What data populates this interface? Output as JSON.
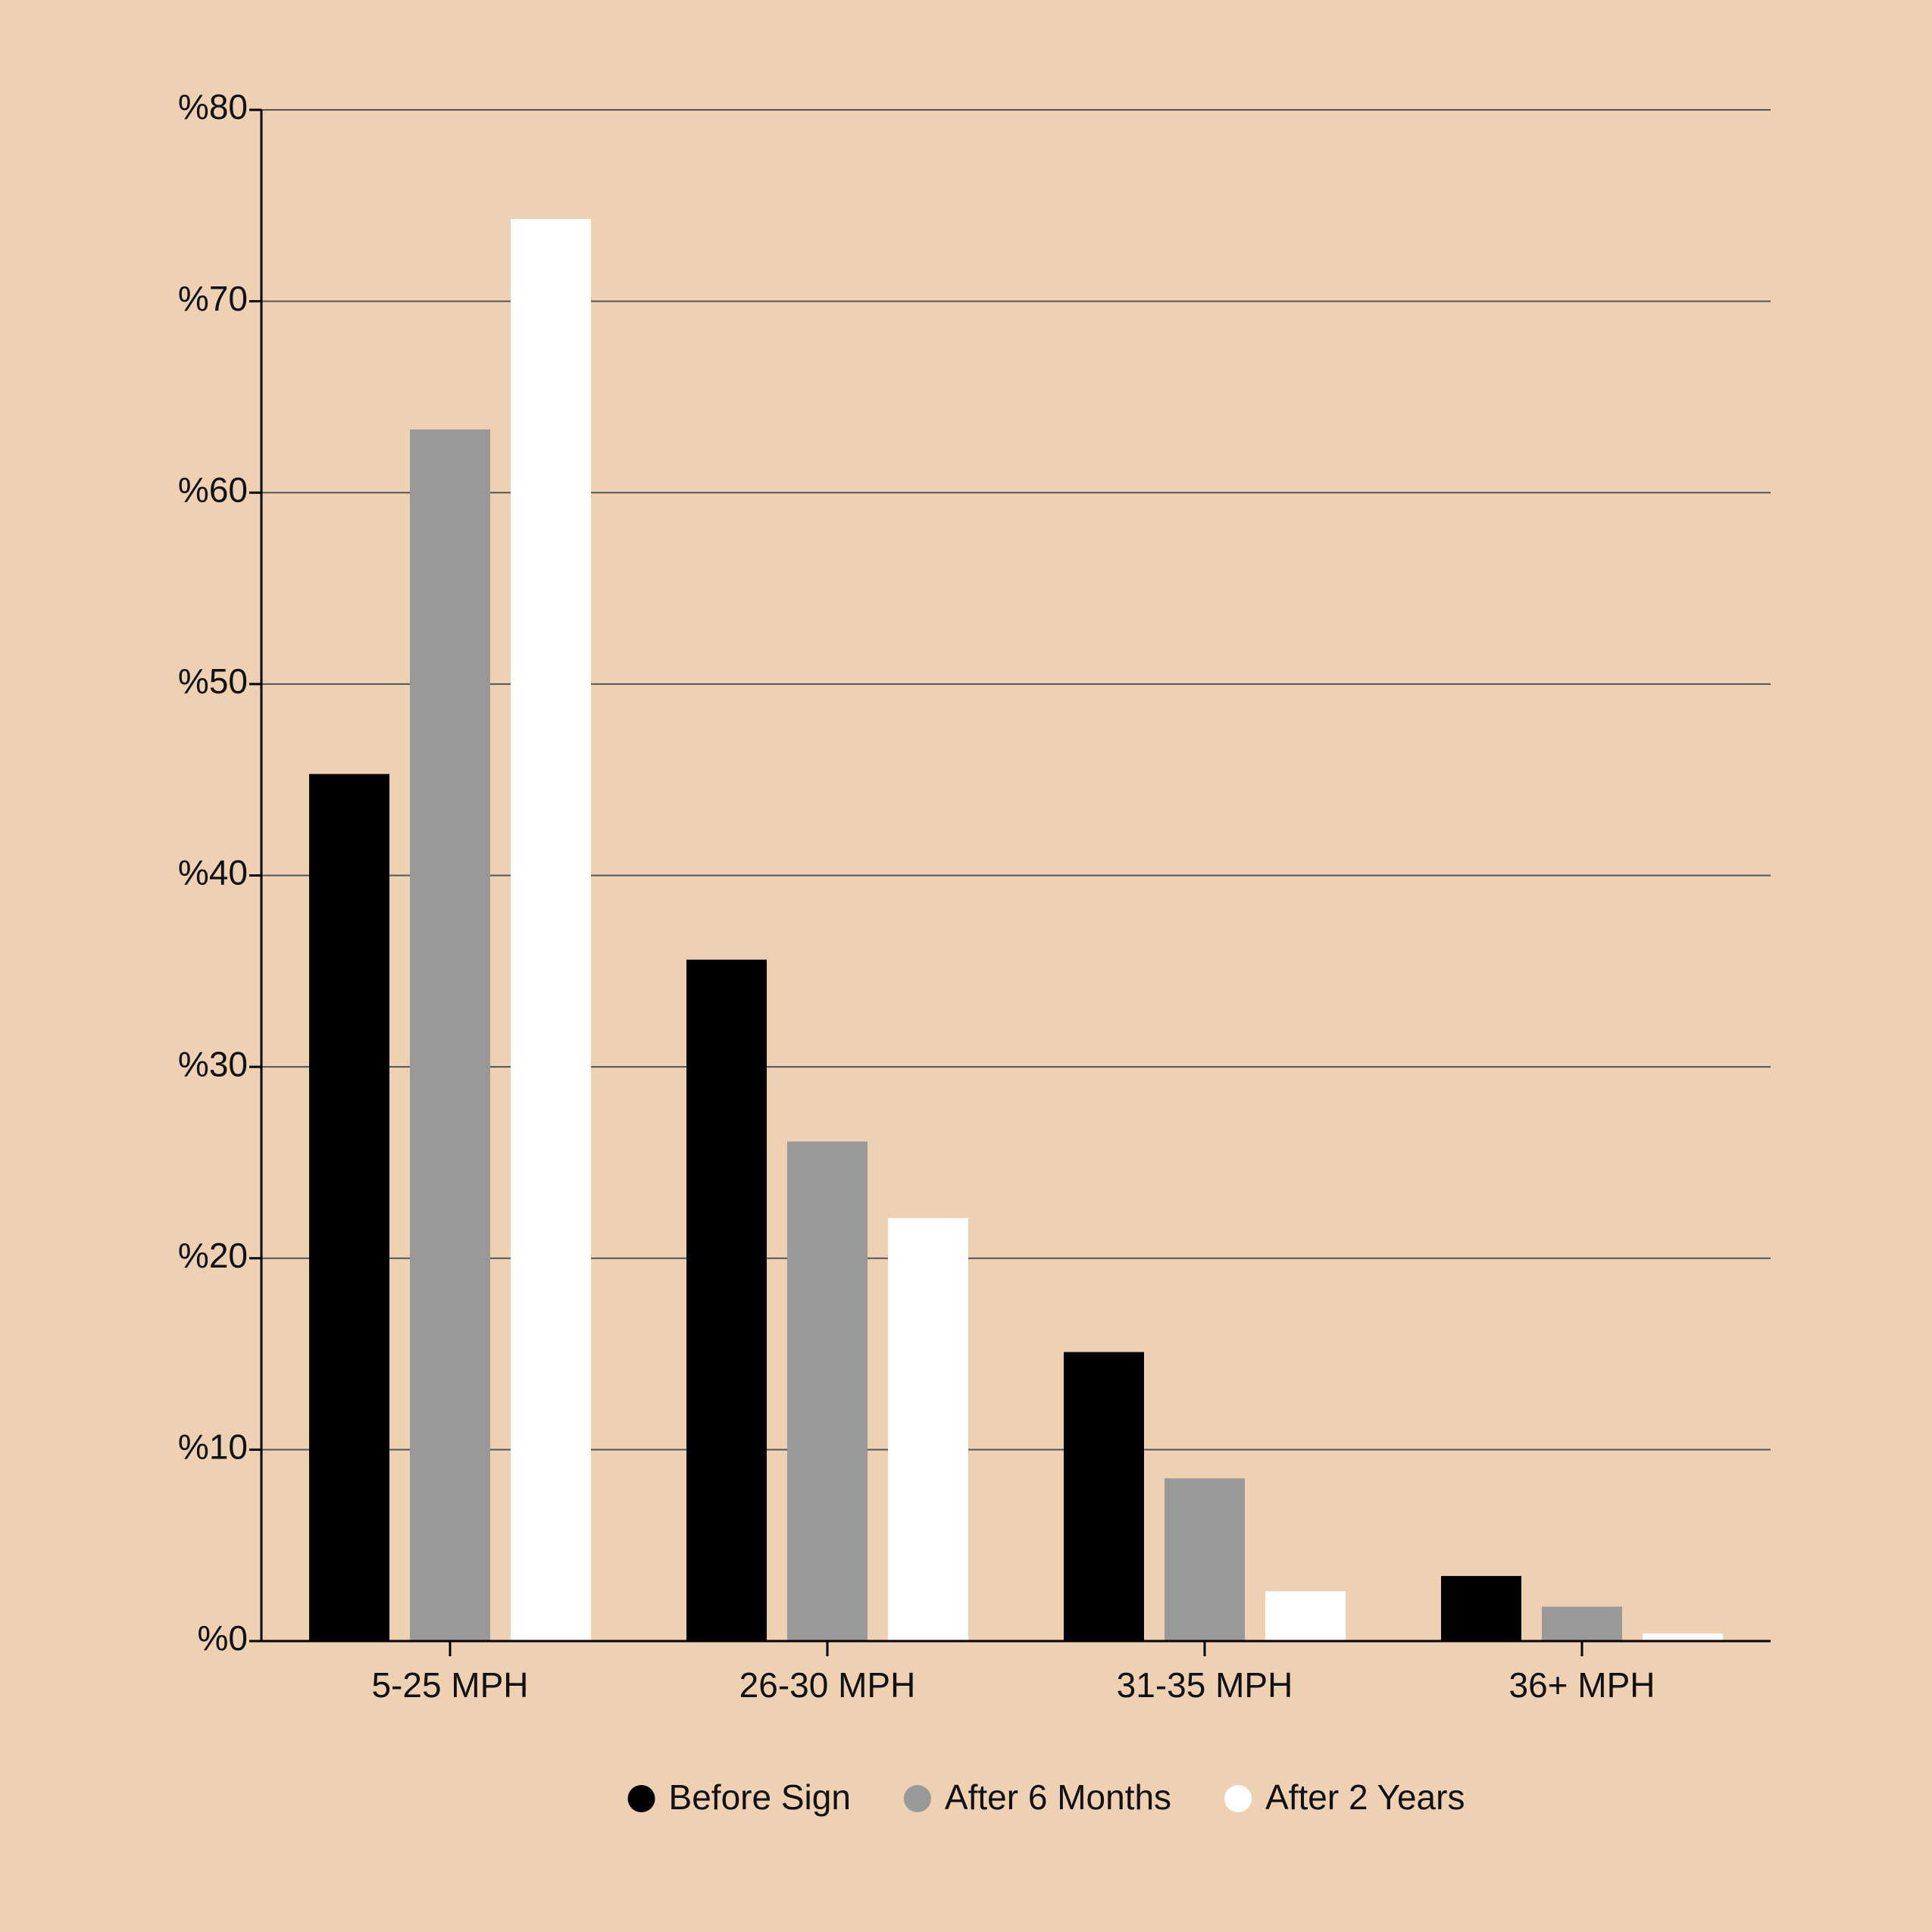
{
  "chart_data": {
    "type": "bar",
    "categories": [
      "5-25 MPH",
      "26-30 MPH",
      "31-35 MPH",
      "36+ MPH"
    ],
    "series": [
      {
        "name": "Before Sign",
        "color": "#000000",
        "values": [
          45.3,
          35.6,
          15.1,
          3.4
        ]
      },
      {
        "name": "After 6 Months",
        "color": "#999999",
        "values": [
          63.3,
          26.1,
          8.5,
          1.8
        ]
      },
      {
        "name": "After 2 Years",
        "color": "#ffffff",
        "values": [
          74.3,
          22.1,
          2.6,
          0.4
        ]
      }
    ],
    "ylim": [
      0,
      80
    ],
    "yticks": [
      {
        "value": 0,
        "label": "%0"
      },
      {
        "value": 10,
        "label": "%10"
      },
      {
        "value": 20,
        "label": "%20"
      },
      {
        "value": 30,
        "label": "%30"
      },
      {
        "value": 40,
        "label": "%40"
      },
      {
        "value": 50,
        "label": "%50"
      },
      {
        "value": 60,
        "label": "%60"
      },
      {
        "value": 70,
        "label": "%70"
      },
      {
        "value": 80,
        "label": "%80"
      }
    ],
    "grid": true,
    "legend": "bottom"
  }
}
